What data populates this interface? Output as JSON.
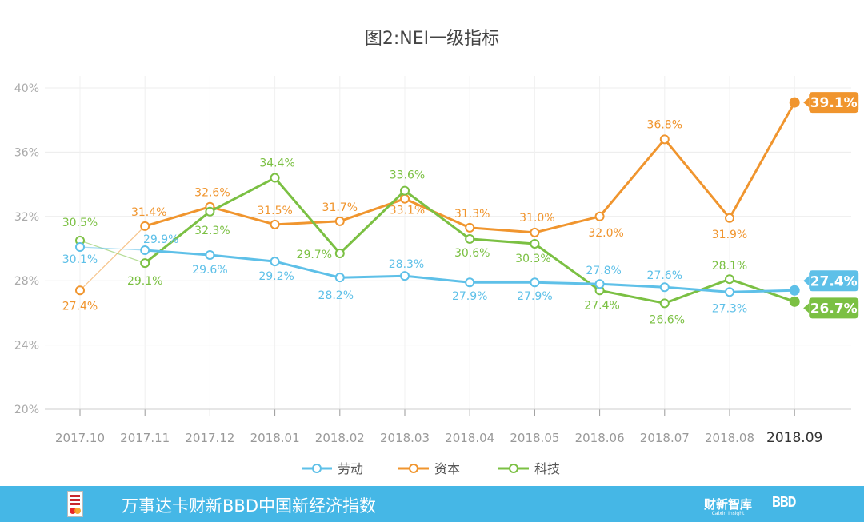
{
  "chart_data": {
    "type": "line",
    "title": "图2:NEI一级指标",
    "categories": [
      "2017.10",
      "2017.11",
      "2017.12",
      "2018.01",
      "2018.02",
      "2018.03",
      "2018.04",
      "2018.05",
      "2018.06",
      "2018.07",
      "2018.08",
      "2018.09"
    ],
    "y_ticks": [
      "20%",
      "24%",
      "28%",
      "32%",
      "36%",
      "40%"
    ],
    "ylim": [
      20,
      40
    ],
    "grid": true,
    "legend_position": "bottom",
    "series": [
      {
        "name": "劳动",
        "color": "#5ec0e8",
        "values": [
          30.1,
          29.9,
          29.6,
          29.2,
          28.2,
          28.3,
          27.9,
          27.9,
          27.8,
          27.6,
          27.3,
          27.4
        ],
        "labels": [
          "30.1%",
          "29.9%",
          "29.6%",
          "29.2%",
          "28.2%",
          "28.3%",
          "27.9%",
          "27.9%",
          "27.8%",
          "27.6%",
          "27.3%",
          "27.4%"
        ]
      },
      {
        "name": "资本",
        "color": "#f0952e",
        "values": [
          27.4,
          31.4,
          32.6,
          31.5,
          31.7,
          33.1,
          31.3,
          31.0,
          32.0,
          36.8,
          31.9,
          39.1
        ],
        "labels": [
          "27.4%",
          "31.4%",
          "32.6%",
          "31.5%",
          "31.7%",
          "33.1%",
          "31.3%",
          "31.0%",
          "32.0%",
          "36.8%",
          "31.9%",
          "39.1%"
        ]
      },
      {
        "name": "科技",
        "color": "#7bc043",
        "values": [
          30.5,
          29.1,
          32.3,
          34.4,
          29.7,
          33.6,
          30.6,
          30.3,
          27.4,
          26.6,
          28.1,
          26.7
        ],
        "labels": [
          "30.5%",
          "29.1%",
          "32.3%",
          "34.4%",
          "29.7%",
          "33.6%",
          "30.6%",
          "30.3%",
          "27.4%",
          "26.6%",
          "28.1%",
          "26.7%"
        ]
      }
    ]
  },
  "footer": {
    "title": "万事达卡财新BBD中国新经济指数",
    "brand1": "财新智库",
    "brand1_sub": "Caixin Insight",
    "brand2": "BBD"
  }
}
